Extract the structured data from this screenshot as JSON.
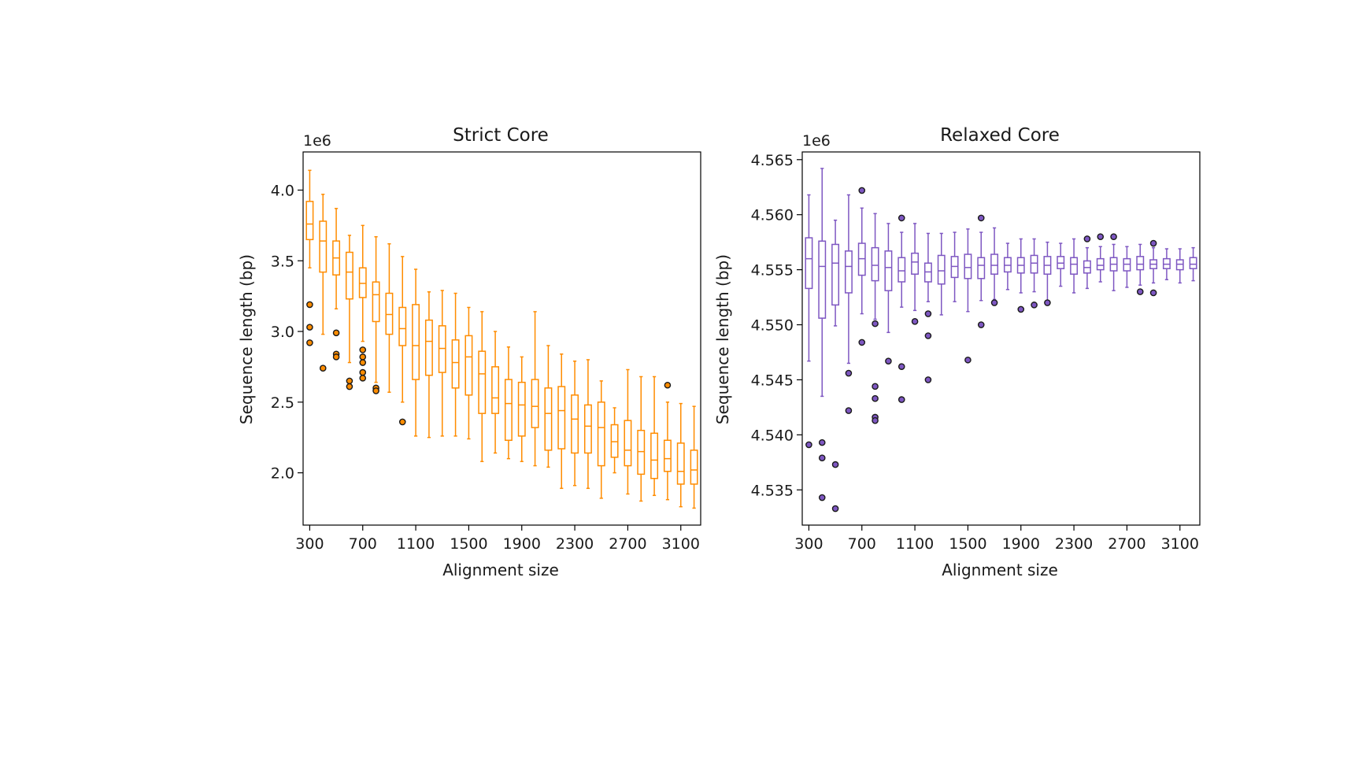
{
  "colors": {
    "strict": "#ff8c00",
    "relaxed": "#7e57c2",
    "outlier_edge": "#1a1a1a"
  },
  "chart_data": [
    {
      "type": "box",
      "title": "Strict Core",
      "xlabel": "Alignment size",
      "ylabel": "Sequence length (bp)",
      "offset_text": "1e6",
      "xlim": [
        250,
        3250
      ],
      "ylim": [
        1.63,
        4.27
      ],
      "xticks": [
        300,
        700,
        1100,
        1500,
        1900,
        2300,
        2700,
        3100
      ],
      "yticks": [
        2.0,
        2.5,
        3.0,
        3.5,
        4.0
      ],
      "ytick_labels": [
        "2.0",
        "2.5",
        "3.0",
        "3.5",
        "4.0"
      ],
      "boxes": [
        {
          "x": 300,
          "wlo": 3.45,
          "q1": 3.65,
          "med": 3.76,
          "q3": 3.92,
          "whi": 4.14,
          "fliers": [
            3.19,
            3.03,
            2.92
          ]
        },
        {
          "x": 400,
          "wlo": 2.98,
          "q1": 3.42,
          "med": 3.64,
          "q3": 3.78,
          "whi": 3.97,
          "fliers": [
            2.74
          ]
        },
        {
          "x": 500,
          "wlo": 3.16,
          "q1": 3.4,
          "med": 3.52,
          "q3": 3.64,
          "whi": 3.87,
          "fliers": [
            2.99,
            2.84,
            2.82
          ]
        },
        {
          "x": 600,
          "wlo": 2.78,
          "q1": 3.23,
          "med": 3.42,
          "q3": 3.56,
          "whi": 3.68,
          "fliers": [
            2.65,
            2.61
          ]
        },
        {
          "x": 700,
          "wlo": 2.93,
          "q1": 3.24,
          "med": 3.34,
          "q3": 3.45,
          "whi": 3.75,
          "fliers": [
            2.87,
            2.82,
            2.78,
            2.71,
            2.67
          ]
        },
        {
          "x": 800,
          "wlo": 2.64,
          "q1": 3.07,
          "med": 3.26,
          "q3": 3.35,
          "whi": 3.67,
          "fliers": [
            2.6,
            2.58
          ]
        },
        {
          "x": 900,
          "wlo": 2.57,
          "q1": 2.98,
          "med": 3.12,
          "q3": 3.27,
          "whi": 3.62,
          "fliers": []
        },
        {
          "x": 1000,
          "wlo": 2.5,
          "q1": 2.9,
          "med": 3.02,
          "q3": 3.17,
          "whi": 3.53,
          "fliers": [
            2.36
          ]
        },
        {
          "x": 1100,
          "wlo": 2.26,
          "q1": 2.66,
          "med": 2.9,
          "q3": 3.19,
          "whi": 3.44,
          "fliers": []
        },
        {
          "x": 1200,
          "wlo": 2.25,
          "q1": 2.69,
          "med": 2.93,
          "q3": 3.08,
          "whi": 3.28,
          "fliers": []
        },
        {
          "x": 1300,
          "wlo": 2.26,
          "q1": 2.71,
          "med": 2.88,
          "q3": 3.04,
          "whi": 3.29,
          "fliers": []
        },
        {
          "x": 1400,
          "wlo": 2.26,
          "q1": 2.6,
          "med": 2.78,
          "q3": 2.94,
          "whi": 3.27,
          "fliers": []
        },
        {
          "x": 1500,
          "wlo": 2.24,
          "q1": 2.55,
          "med": 2.82,
          "q3": 2.97,
          "whi": 3.17,
          "fliers": []
        },
        {
          "x": 1600,
          "wlo": 2.08,
          "q1": 2.42,
          "med": 2.7,
          "q3": 2.86,
          "whi": 3.14,
          "fliers": []
        },
        {
          "x": 1700,
          "wlo": 2.14,
          "q1": 2.42,
          "med": 2.53,
          "q3": 2.75,
          "whi": 3.0,
          "fliers": []
        },
        {
          "x": 1800,
          "wlo": 2.1,
          "q1": 2.23,
          "med": 2.49,
          "q3": 2.66,
          "whi": 2.89,
          "fliers": []
        },
        {
          "x": 1900,
          "wlo": 2.08,
          "q1": 2.26,
          "med": 2.48,
          "q3": 2.64,
          "whi": 2.82,
          "fliers": []
        },
        {
          "x": 2000,
          "wlo": 2.05,
          "q1": 2.32,
          "med": 2.47,
          "q3": 2.66,
          "whi": 3.14,
          "fliers": []
        },
        {
          "x": 2100,
          "wlo": 2.04,
          "q1": 2.16,
          "med": 2.42,
          "q3": 2.6,
          "whi": 2.9,
          "fliers": []
        },
        {
          "x": 2200,
          "wlo": 1.89,
          "q1": 2.17,
          "med": 2.44,
          "q3": 2.61,
          "whi": 2.84,
          "fliers": []
        },
        {
          "x": 2300,
          "wlo": 1.91,
          "q1": 2.14,
          "med": 2.38,
          "q3": 2.55,
          "whi": 2.79,
          "fliers": []
        },
        {
          "x": 2400,
          "wlo": 1.89,
          "q1": 2.14,
          "med": 2.33,
          "q3": 2.48,
          "whi": 2.8,
          "fliers": []
        },
        {
          "x": 2500,
          "wlo": 1.82,
          "q1": 2.05,
          "med": 2.32,
          "q3": 2.5,
          "whi": 2.65,
          "fliers": []
        },
        {
          "x": 2600,
          "wlo": 2.0,
          "q1": 2.11,
          "med": 2.22,
          "q3": 2.34,
          "whi": 2.46,
          "fliers": []
        },
        {
          "x": 2700,
          "wlo": 1.85,
          "q1": 2.05,
          "med": 2.16,
          "q3": 2.37,
          "whi": 2.73,
          "fliers": []
        },
        {
          "x": 2800,
          "wlo": 1.8,
          "q1": 1.99,
          "med": 2.15,
          "q3": 2.3,
          "whi": 2.68,
          "fliers": []
        },
        {
          "x": 2900,
          "wlo": 1.84,
          "q1": 1.96,
          "med": 2.09,
          "q3": 2.28,
          "whi": 2.68,
          "fliers": []
        },
        {
          "x": 3000,
          "wlo": 1.81,
          "q1": 2.01,
          "med": 2.1,
          "q3": 2.23,
          "whi": 2.5,
          "fliers": [
            2.62
          ]
        },
        {
          "x": 3100,
          "wlo": 1.76,
          "q1": 1.92,
          "med": 2.01,
          "q3": 2.21,
          "whi": 2.49,
          "fliers": []
        },
        {
          "x": 3200,
          "wlo": 1.75,
          "q1": 1.92,
          "med": 2.02,
          "q3": 2.16,
          "whi": 2.47,
          "fliers": []
        }
      ]
    },
    {
      "type": "box",
      "title": "Relaxed Core",
      "xlabel": "Alignment size",
      "ylabel": "Sequence length (bp)",
      "offset_text": "1e6",
      "xlim": [
        250,
        3250
      ],
      "ylim": [
        4.5318,
        4.5657
      ],
      "xticks": [
        300,
        700,
        1100,
        1500,
        1900,
        2300,
        2700,
        3100
      ],
      "yticks": [
        4.535,
        4.54,
        4.545,
        4.55,
        4.555,
        4.56,
        4.565
      ],
      "ytick_labels": [
        "4.535",
        "4.540",
        "4.545",
        "4.550",
        "4.555",
        "4.560",
        "4.565"
      ],
      "boxes": [
        {
          "x": 300,
          "wlo": 4.5467,
          "q1": 4.5533,
          "med": 4.556,
          "q3": 4.5579,
          "whi": 4.5618,
          "fliers": [
            4.5391
          ]
        },
        {
          "x": 400,
          "wlo": 4.5435,
          "q1": 4.5506,
          "med": 4.5553,
          "q3": 4.5576,
          "whi": 4.5642,
          "fliers": [
            4.5393,
            4.5379,
            4.5343
          ]
        },
        {
          "x": 500,
          "wlo": 4.5499,
          "q1": 4.5518,
          "med": 4.5556,
          "q3": 4.5573,
          "whi": 4.5595,
          "fliers": [
            4.5373,
            4.5333
          ]
        },
        {
          "x": 600,
          "wlo": 4.5465,
          "q1": 4.5529,
          "med": 4.5553,
          "q3": 4.5567,
          "whi": 4.5618,
          "fliers": [
            4.5456,
            4.5422
          ]
        },
        {
          "x": 700,
          "wlo": 4.551,
          "q1": 4.5545,
          "med": 4.556,
          "q3": 4.5574,
          "whi": 4.5606,
          "fliers": [
            4.5622,
            4.5484
          ]
        },
        {
          "x": 800,
          "wlo": 4.5505,
          "q1": 4.554,
          "med": 4.5554,
          "q3": 4.557,
          "whi": 4.5601,
          "fliers": [
            4.5501,
            4.5444,
            4.5433,
            4.5416,
            4.5413
          ]
        },
        {
          "x": 900,
          "wlo": 4.5493,
          "q1": 4.5531,
          "med": 4.5552,
          "q3": 4.5567,
          "whi": 4.5592,
          "fliers": [
            4.5467
          ]
        },
        {
          "x": 1000,
          "wlo": 4.5516,
          "q1": 4.5539,
          "med": 4.5549,
          "q3": 4.5561,
          "whi": 4.5584,
          "fliers": [
            4.5597,
            4.5462,
            4.5432
          ]
        },
        {
          "x": 1100,
          "wlo": 4.5513,
          "q1": 4.5546,
          "med": 4.5557,
          "q3": 4.5565,
          "whi": 4.5592,
          "fliers": [
            4.5503
          ]
        },
        {
          "x": 1200,
          "wlo": 4.5521,
          "q1": 4.5539,
          "med": 4.5548,
          "q3": 4.5556,
          "whi": 4.5583,
          "fliers": [
            4.551,
            4.549,
            4.545
          ]
        },
        {
          "x": 1300,
          "wlo": 4.5509,
          "q1": 4.5537,
          "med": 4.5549,
          "q3": 4.5563,
          "whi": 4.5583,
          "fliers": []
        },
        {
          "x": 1400,
          "wlo": 4.5521,
          "q1": 4.5543,
          "med": 4.5553,
          "q3": 4.5562,
          "whi": 4.5584,
          "fliers": []
        },
        {
          "x": 1500,
          "wlo": 4.5512,
          "q1": 4.5542,
          "med": 4.5552,
          "q3": 4.5564,
          "whi": 4.5587,
          "fliers": [
            4.5468
          ]
        },
        {
          "x": 1600,
          "wlo": 4.5522,
          "q1": 4.5542,
          "med": 4.5554,
          "q3": 4.5561,
          "whi": 4.5584,
          "fliers": [
            4.5597,
            4.55
          ]
        },
        {
          "x": 1700,
          "wlo": 4.5523,
          "q1": 4.5546,
          "med": 4.5554,
          "q3": 4.5564,
          "whi": 4.5588,
          "fliers": [
            4.552
          ]
        },
        {
          "x": 1800,
          "wlo": 4.5532,
          "q1": 4.5548,
          "med": 4.5554,
          "q3": 4.5561,
          "whi": 4.5574,
          "fliers": []
        },
        {
          "x": 1900,
          "wlo": 4.5529,
          "q1": 4.5547,
          "med": 4.5554,
          "q3": 4.5561,
          "whi": 4.5578,
          "fliers": [
            4.5514
          ]
        },
        {
          "x": 2000,
          "wlo": 4.553,
          "q1": 4.5547,
          "med": 4.5556,
          "q3": 4.5563,
          "whi": 4.5578,
          "fliers": [
            4.5518
          ]
        },
        {
          "x": 2100,
          "wlo": 4.5522,
          "q1": 4.5546,
          "med": 4.5554,
          "q3": 4.5562,
          "whi": 4.5575,
          "fliers": [
            4.552
          ]
        },
        {
          "x": 2200,
          "wlo": 4.5535,
          "q1": 4.5551,
          "med": 4.5556,
          "q3": 4.5562,
          "whi": 4.5574,
          "fliers": []
        },
        {
          "x": 2300,
          "wlo": 4.5529,
          "q1": 4.5546,
          "med": 4.5555,
          "q3": 4.5561,
          "whi": 4.5578,
          "fliers": []
        },
        {
          "x": 2400,
          "wlo": 4.5533,
          "q1": 4.5547,
          "med": 4.5552,
          "q3": 4.5558,
          "whi": 4.557,
          "fliers": [
            4.5578
          ]
        },
        {
          "x": 2500,
          "wlo": 4.5539,
          "q1": 4.555,
          "med": 4.5554,
          "q3": 4.556,
          "whi": 4.5571,
          "fliers": [
            4.558
          ]
        },
        {
          "x": 2600,
          "wlo": 4.5531,
          "q1": 4.5549,
          "med": 4.5555,
          "q3": 4.5561,
          "whi": 4.5573,
          "fliers": [
            4.558
          ]
        },
        {
          "x": 2700,
          "wlo": 4.5534,
          "q1": 4.5549,
          "med": 4.5555,
          "q3": 4.556,
          "whi": 4.5571,
          "fliers": []
        },
        {
          "x": 2800,
          "wlo": 4.5536,
          "q1": 4.555,
          "med": 4.5555,
          "q3": 4.5562,
          "whi": 4.5573,
          "fliers": [
            4.553
          ]
        },
        {
          "x": 2900,
          "wlo": 4.5538,
          "q1": 4.5551,
          "med": 4.5555,
          "q3": 4.5559,
          "whi": 4.557,
          "fliers": [
            4.5574,
            4.5529
          ]
        },
        {
          "x": 3000,
          "wlo": 4.5541,
          "q1": 4.5551,
          "med": 4.5555,
          "q3": 4.556,
          "whi": 4.5569,
          "fliers": []
        },
        {
          "x": 3100,
          "wlo": 4.5538,
          "q1": 4.555,
          "med": 4.5555,
          "q3": 4.5559,
          "whi": 4.5569,
          "fliers": []
        },
        {
          "x": 3200,
          "wlo": 4.554,
          "q1": 4.5551,
          "med": 4.5555,
          "q3": 4.5561,
          "whi": 4.557,
          "fliers": []
        }
      ]
    }
  ]
}
